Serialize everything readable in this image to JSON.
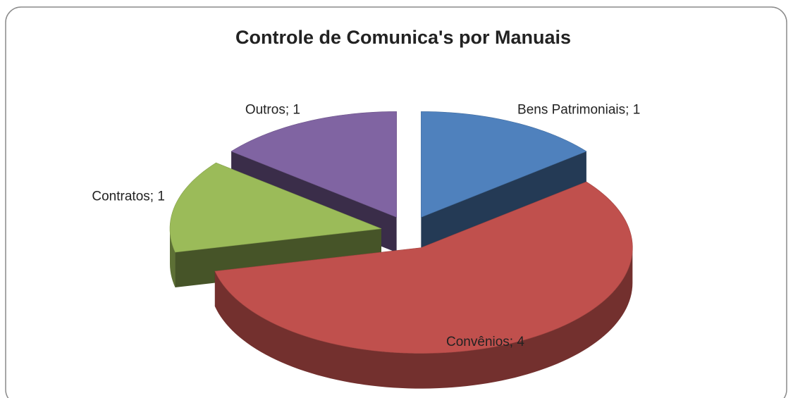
{
  "chart_data": {
    "type": "pie3d",
    "title": "Controle de Comunica's por Manuais",
    "values": [
      1,
      4,
      1,
      1
    ],
    "value_labels": [
      "Bens Patrimoniais; 1",
      "Convênios; 4",
      "Contratos; 1",
      "Outros; 1"
    ],
    "colors": [
      "#4f81bd",
      "#c0504d",
      "#9bbb59",
      "#8064a2"
    ]
  }
}
